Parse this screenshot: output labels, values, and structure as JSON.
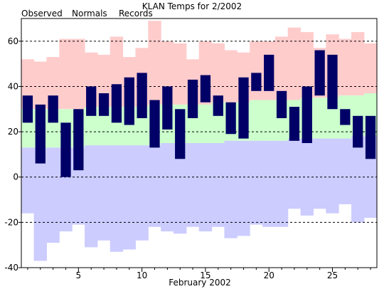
{
  "chart_data": {
    "type": "bar",
    "title": "KLAN Temps for 2/2002",
    "xlabel": "February 2002",
    "ylabel": "",
    "legend": [
      {
        "name": "Observed",
        "color": "#000066"
      },
      {
        "name": "Normals",
        "color": "#006600"
      },
      {
        "name": "Records",
        "color": "#ff99cc"
      }
    ],
    "ylim": [
      -40,
      70
    ],
    "yticks": [
      -40,
      -20,
      0,
      20,
      40,
      60
    ],
    "xlim": [
      0.5,
      28.5
    ],
    "xticks": [
      5,
      10,
      15,
      20,
      25
    ],
    "grid": "horizontal dashed",
    "days": [
      1,
      2,
      3,
      4,
      5,
      6,
      7,
      8,
      9,
      10,
      11,
      12,
      13,
      14,
      15,
      16,
      17,
      18,
      19,
      20,
      21,
      22,
      23,
      24,
      25,
      26,
      27,
      28
    ],
    "record_high": [
      52,
      51,
      53,
      61,
      61,
      55,
      54,
      62,
      53,
      57,
      69,
      60,
      59,
      52,
      60,
      59,
      56,
      55,
      60,
      60,
      62,
      66,
      64,
      57,
      63,
      61,
      64,
      59
    ],
    "record_low": [
      -16,
      -37,
      -29,
      -24,
      -21,
      -31,
      -28,
      -33,
      -32,
      -28,
      -22,
      -24,
      -25,
      -22,
      -24,
      -22,
      -27,
      -26,
      -21,
      -22,
      -22,
      -14,
      -17,
      -14,
      -16,
      -12,
      -20,
      -18
    ],
    "normal_high": [
      30,
      30,
      30,
      30,
      30,
      31,
      31,
      31,
      31,
      31,
      32,
      32,
      32,
      32,
      32,
      33,
      33,
      33,
      34,
      34,
      34,
      34,
      35,
      35,
      35,
      36,
      36,
      37
    ],
    "normal_low": [
      13,
      13,
      13,
      13,
      13,
      14,
      14,
      14,
      14,
      14,
      14,
      15,
      15,
      15,
      15,
      15,
      16,
      16,
      16,
      16,
      16,
      17,
      17,
      17,
      17,
      17,
      18,
      18
    ],
    "observed": [
      {
        "low": 24,
        "high": 36
      },
      {
        "low": 6,
        "high": 32
      },
      {
        "low": 24,
        "high": 36
      },
      {
        "low": 0,
        "high": 24
      },
      {
        "low": 3,
        "high": 30
      },
      {
        "low": 27,
        "high": 40
      },
      {
        "low": 27,
        "high": 37
      },
      {
        "low": 24,
        "high": 41
      },
      {
        "low": 23,
        "high": 44
      },
      {
        "low": 26,
        "high": 46
      },
      {
        "low": 13,
        "high": 34
      },
      {
        "low": 21,
        "high": 40
      },
      {
        "low": 8,
        "high": 30
      },
      {
        "low": 26,
        "high": 43
      },
      {
        "low": 33,
        "high": 45
      },
      {
        "low": 27,
        "high": 36
      },
      {
        "low": 19,
        "high": 33
      },
      {
        "low": 17,
        "high": 44
      },
      {
        "low": 38,
        "high": 46
      },
      {
        "low": 38,
        "high": 54
      },
      {
        "low": 26,
        "high": 38
      },
      {
        "low": 16,
        "high": 31
      },
      {
        "low": 15,
        "high": 40
      },
      {
        "low": 36,
        "high": 56
      },
      {
        "low": 30,
        "high": 54
      },
      {
        "low": 23,
        "high": 30
      },
      {
        "low": 13,
        "high": 27
      },
      {
        "low": 8,
        "high": 27
      }
    ]
  },
  "colors": {
    "observed": "#000066",
    "normal_band": "#ccffcc",
    "record_high_band": "#ffcccc",
    "record_low_band": "#ccccff",
    "normals_legend": "#006600",
    "records_legend": "#ff99cc"
  }
}
